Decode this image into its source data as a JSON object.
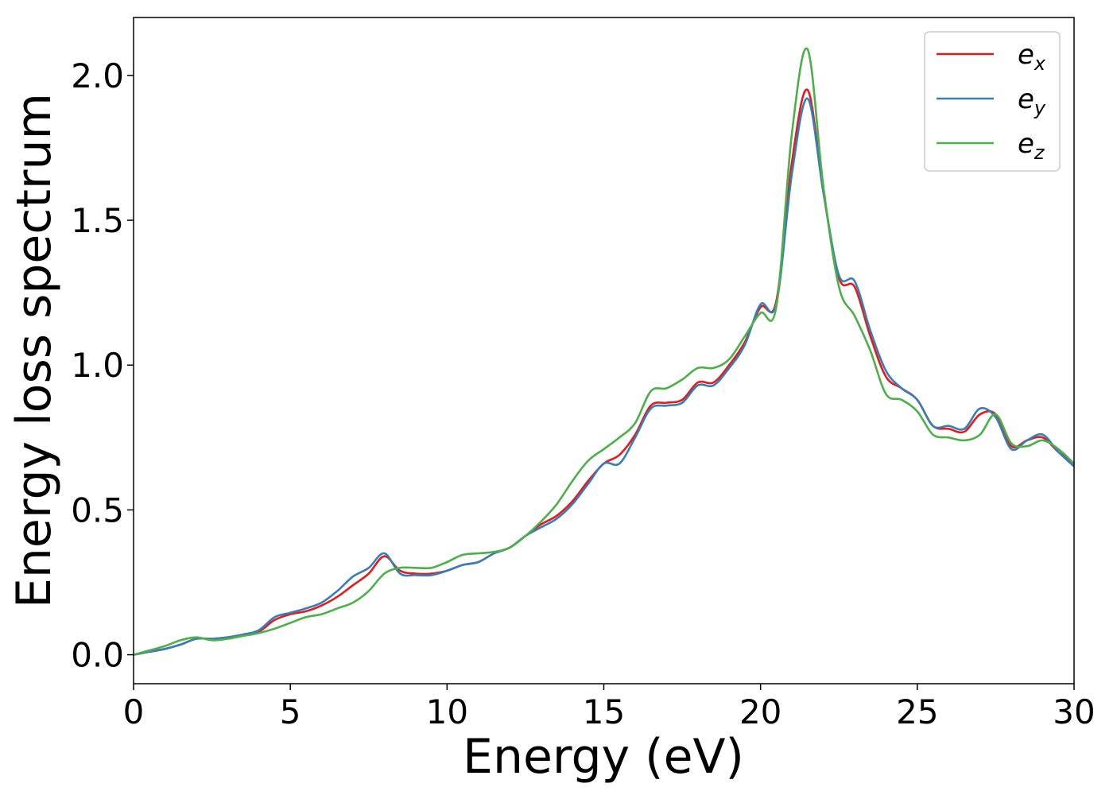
{
  "chart_data": {
    "type": "line",
    "title": "",
    "xlabel": "Energy (eV)",
    "ylabel": "Energy loss spectrum",
    "xlim": [
      0,
      30
    ],
    "ylim": [
      -0.1,
      2.2
    ],
    "xticks": [
      0,
      5,
      10,
      15,
      20,
      25,
      30
    ],
    "xtick_labels": [
      "0",
      "5",
      "10",
      "15",
      "20",
      "25",
      "30"
    ],
    "yticks": [
      0.0,
      0.5,
      1.0,
      1.5,
      2.0
    ],
    "ytick_labels": [
      "0.0",
      "0.5",
      "1.0",
      "1.5",
      "2.0"
    ],
    "grid": false,
    "legend_position": "top-right",
    "series": [
      {
        "name": "e_x",
        "label_main": "e",
        "label_sub": "x",
        "color": "#e41a1c",
        "x": [
          0,
          0.5,
          1,
          1.5,
          2,
          2.5,
          3,
          3.5,
          4,
          4.5,
          5,
          5.5,
          6,
          6.5,
          7,
          7.5,
          8,
          8.5,
          9,
          9.5,
          10,
          10.5,
          11,
          11.5,
          12,
          12.5,
          13,
          13.5,
          14,
          14.5,
          15,
          15.5,
          16,
          16.5,
          17,
          17.5,
          18,
          18.5,
          19,
          19.5,
          20,
          20.5,
          21,
          21.5,
          22,
          22.5,
          23,
          23.5,
          24,
          24.5,
          25,
          25.5,
          26,
          26.5,
          27,
          27.5,
          28,
          28.5,
          29,
          29.5,
          30
        ],
        "y": [
          0.0,
          0.01,
          0.02,
          0.035,
          0.055,
          0.055,
          0.06,
          0.07,
          0.08,
          0.12,
          0.14,
          0.15,
          0.17,
          0.2,
          0.24,
          0.28,
          0.34,
          0.29,
          0.28,
          0.28,
          0.29,
          0.31,
          0.32,
          0.35,
          0.37,
          0.41,
          0.45,
          0.48,
          0.53,
          0.6,
          0.66,
          0.69,
          0.76,
          0.86,
          0.87,
          0.88,
          0.94,
          0.94,
          1.0,
          1.08,
          1.2,
          1.22,
          1.7,
          1.95,
          1.6,
          1.3,
          1.27,
          1.1,
          0.96,
          0.92,
          0.88,
          0.79,
          0.78,
          0.77,
          0.83,
          0.83,
          0.72,
          0.74,
          0.75,
          0.7,
          0.66
        ]
      },
      {
        "name": "e_y",
        "label_main": "e",
        "label_sub": "y",
        "color": "#377eb8",
        "x": [
          0,
          0.5,
          1,
          1.5,
          2,
          2.5,
          3,
          3.5,
          4,
          4.5,
          5,
          5.5,
          6,
          6.5,
          7,
          7.5,
          8,
          8.5,
          9,
          9.5,
          10,
          10.5,
          11,
          11.5,
          12,
          12.5,
          13,
          13.5,
          14,
          14.5,
          15,
          15.5,
          16,
          16.5,
          17,
          17.5,
          18,
          18.5,
          19,
          19.5,
          20,
          20.5,
          21,
          21.5,
          22,
          22.5,
          23,
          23.5,
          24,
          24.5,
          25,
          25.5,
          26,
          26.5,
          27,
          27.5,
          28,
          28.5,
          29,
          29.5,
          30
        ],
        "y": [
          0.0,
          0.01,
          0.02,
          0.035,
          0.055,
          0.055,
          0.06,
          0.07,
          0.085,
          0.13,
          0.145,
          0.16,
          0.18,
          0.22,
          0.27,
          0.3,
          0.35,
          0.28,
          0.275,
          0.275,
          0.29,
          0.31,
          0.32,
          0.35,
          0.37,
          0.41,
          0.44,
          0.47,
          0.52,
          0.59,
          0.66,
          0.66,
          0.75,
          0.85,
          0.86,
          0.87,
          0.93,
          0.93,
          0.99,
          1.07,
          1.21,
          1.21,
          1.66,
          1.92,
          1.6,
          1.31,
          1.29,
          1.12,
          0.98,
          0.92,
          0.88,
          0.79,
          0.79,
          0.78,
          0.85,
          0.82,
          0.71,
          0.74,
          0.76,
          0.7,
          0.65
        ]
      },
      {
        "name": "e_z",
        "label_main": "e",
        "label_sub": "z",
        "color": "#4daf4a",
        "x": [
          0,
          0.5,
          1,
          1.5,
          2,
          2.5,
          3,
          3.5,
          4,
          4.5,
          5,
          5.5,
          6,
          6.5,
          7,
          7.5,
          8,
          8.5,
          9,
          9.5,
          10,
          10.5,
          11,
          11.5,
          12,
          12.5,
          13,
          13.5,
          14,
          14.5,
          15,
          15.5,
          16,
          16.5,
          17,
          17.5,
          18,
          18.5,
          19,
          19.5,
          20,
          20.5,
          21,
          21.5,
          22,
          22.5,
          23,
          23.5,
          24,
          24.5,
          25,
          25.5,
          26,
          26.5,
          27,
          27.5,
          28,
          28.5,
          29,
          29.5,
          30
        ],
        "y": [
          0.0,
          0.015,
          0.03,
          0.05,
          0.06,
          0.05,
          0.055,
          0.065,
          0.075,
          0.09,
          0.11,
          0.13,
          0.14,
          0.16,
          0.18,
          0.22,
          0.28,
          0.3,
          0.3,
          0.3,
          0.32,
          0.345,
          0.35,
          0.355,
          0.37,
          0.41,
          0.46,
          0.52,
          0.6,
          0.67,
          0.71,
          0.75,
          0.8,
          0.91,
          0.92,
          0.95,
          0.99,
          0.99,
          1.02,
          1.1,
          1.18,
          1.2,
          1.8,
          2.09,
          1.62,
          1.27,
          1.17,
          1.05,
          0.9,
          0.88,
          0.84,
          0.76,
          0.75,
          0.74,
          0.76,
          0.83,
          0.73,
          0.72,
          0.74,
          0.71,
          0.66
        ]
      }
    ]
  }
}
